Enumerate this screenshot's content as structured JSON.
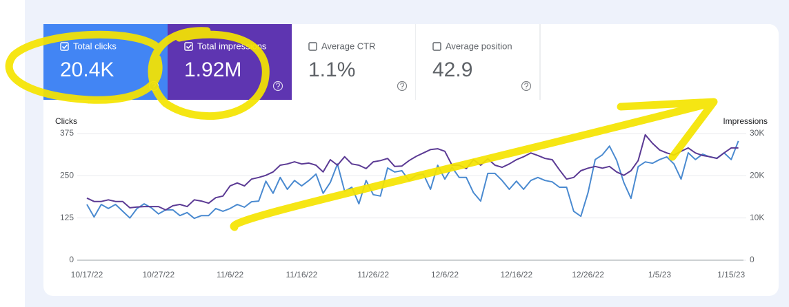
{
  "metrics": [
    {
      "label": "Total clicks",
      "value": "20.4K",
      "checked": true,
      "color": "#4285f4"
    },
    {
      "label": "Total impressions",
      "value": "1.92M",
      "checked": true,
      "color": "#5e35b1"
    },
    {
      "label": "Average CTR",
      "value": "1.1%",
      "checked": false,
      "color": "#ffffff"
    },
    {
      "label": "Average position",
      "value": "42.9",
      "checked": false,
      "color": "#ffffff"
    }
  ],
  "chart_data": {
    "type": "line",
    "categories": [
      "10/17/22",
      null,
      null,
      null,
      null,
      null,
      null,
      null,
      null,
      null,
      "10/27/22",
      null,
      null,
      null,
      null,
      null,
      null,
      null,
      null,
      null,
      "11/6/22",
      null,
      null,
      null,
      null,
      null,
      null,
      null,
      null,
      null,
      "11/16/22",
      null,
      null,
      null,
      null,
      null,
      null,
      null,
      null,
      null,
      "11/26/22",
      null,
      null,
      null,
      null,
      null,
      null,
      null,
      null,
      null,
      "12/6/22",
      null,
      null,
      null,
      null,
      null,
      null,
      null,
      null,
      null,
      "12/16/22",
      null,
      null,
      null,
      null,
      null,
      null,
      null,
      null,
      null,
      "12/26/22",
      null,
      null,
      null,
      null,
      null,
      null,
      null,
      null,
      null,
      "1/5/23",
      null,
      null,
      null,
      null,
      null,
      null,
      null,
      null,
      null,
      "1/15/23",
      null
    ],
    "series": [
      {
        "name": "Clicks",
        "color": "#4a8ad0",
        "values": [
          165,
          128,
          165,
          153,
          165,
          145,
          125,
          153,
          167,
          155,
          137,
          149,
          149,
          132,
          141,
          124,
          132,
          132,
          153,
          145,
          153,
          165,
          157,
          173,
          175,
          234,
          198,
          245,
          210,
          236,
          220,
          236,
          255,
          198,
          230,
          285,
          204,
          216,
          167,
          236,
          194,
          190,
          273,
          261,
          265,
          236,
          251,
          255,
          210,
          281,
          240,
          275,
          245,
          245,
          200,
          175,
          257,
          257,
          236,
          210,
          234,
          210,
          236,
          245,
          236,
          232,
          216,
          216,
          145,
          130,
          200,
          298,
          312,
          338,
          296,
          230,
          183,
          277,
          291,
          287,
          298,
          306,
          285,
          240,
          318,
          298,
          314,
          306,
          302,
          318,
          298,
          353
        ]
      },
      {
        "name": "Impressions",
        "color": "#5b3a94",
        "axis": "y2",
        "values": [
          14700,
          13900,
          13900,
          14300,
          13900,
          13900,
          12400,
          12600,
          12700,
          12700,
          12700,
          11900,
          12900,
          13200,
          12700,
          14300,
          14000,
          13500,
          14800,
          15200,
          17600,
          18300,
          17600,
          19200,
          19600,
          20100,
          20900,
          22500,
          22800,
          23300,
          22800,
          23000,
          22500,
          20900,
          23800,
          22500,
          24500,
          22800,
          22500,
          21700,
          23300,
          23600,
          24100,
          22200,
          22300,
          23600,
          24600,
          25400,
          26200,
          26400,
          25800,
          22500,
          22500,
          21700,
          23800,
          22500,
          24000,
          22500,
          22000,
          22800,
          23800,
          24500,
          25400,
          24800,
          24100,
          23800,
          21400,
          19200,
          19600,
          21200,
          21800,
          22200,
          21800,
          22200,
          20900,
          20100,
          21200,
          23600,
          29700,
          27700,
          26100,
          25400,
          24900,
          25800,
          26600,
          25400,
          24800,
          24500,
          24100,
          25400,
          26600,
          26600
        ]
      }
    ],
    "ylim": [
      0,
      375
    ],
    "yticks": [
      0,
      125,
      250,
      375
    ],
    "y2lim": [
      0,
      30000
    ],
    "y2ticks": [
      0,
      {
        "value": 10000,
        "label": "10K"
      },
      {
        "value": 20000,
        "label": "20K"
      },
      {
        "value": 30000,
        "label": "30K"
      }
    ],
    "grid": true
  }
}
